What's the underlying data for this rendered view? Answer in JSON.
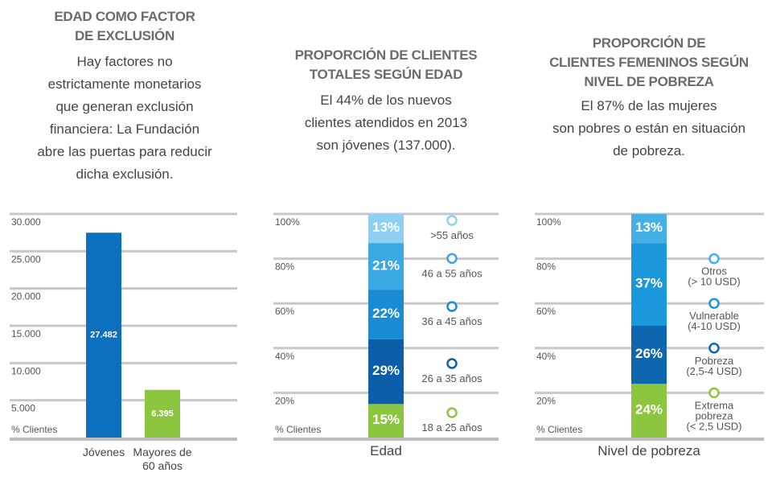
{
  "chart_data": [
    {
      "type": "bar",
      "title": "EDAD COMO FACTOR\nDE EXCLUSIÓN",
      "description": "Hay factores no\nestrictamente monetarios\nque generan exclusión\nfinanciera: La Fundación\nabre las puertas para reducir\ndicha exclusión.",
      "y_label": "% Clientes",
      "categories": [
        "Jóvenes",
        "Mayores de\n60 años"
      ],
      "values": [
        27482,
        6395
      ],
      "value_labels": [
        "27.482",
        "6.395"
      ],
      "colors": [
        "#0d70be",
        "#8cc63f"
      ],
      "ylim": [
        0,
        30000
      ],
      "yticks": [
        {
          "value": 5000,
          "label": "5.000"
        },
        {
          "value": 10000,
          "label": "10.000"
        },
        {
          "value": 15000,
          "label": "15.000"
        },
        {
          "value": 20000,
          "label": "20.000"
        },
        {
          "value": 25000,
          "label": "25.000"
        },
        {
          "value": 30000,
          "label": "30.000"
        }
      ],
      "grid": true
    },
    {
      "type": "stacked_bar",
      "title": "PROPORCIÓN DE CLIENTES\nTOTALES SEGÚN EDAD",
      "description": "El 44% de los nuevos\nclientes atendidos en 2013\nson jóvenes (137.000).",
      "y_label": "% Clientes",
      "categories": [
        "Edad"
      ],
      "series": [
        {
          "name": "18 a 25 años",
          "color": "#8cc63f",
          "values": [
            15
          ],
          "value_labels": [
            "15%"
          ]
        },
        {
          "name": "26 a 35 años",
          "color": "#0d5ea8",
          "values": [
            29
          ],
          "value_labels": [
            "29%"
          ]
        },
        {
          "name": "36 a 45 años",
          "color": "#1a8cd6",
          "values": [
            22
          ],
          "value_labels": [
            "22%"
          ]
        },
        {
          "name": "46 a 55 años",
          "color": "#3aa8e2",
          "values": [
            21
          ],
          "value_labels": [
            "21%"
          ]
        },
        {
          "name": ">55 años",
          "color": "#8fd0f2",
          "values": [
            13
          ],
          "value_labels": [
            "13%"
          ]
        }
      ],
      "ylim": [
        0,
        100
      ],
      "yticks": [
        {
          "value": 20,
          "label": "20%"
        },
        {
          "value": 40,
          "label": "40%"
        },
        {
          "value": 60,
          "label": "60%"
        },
        {
          "value": 80,
          "label": "80%"
        },
        {
          "value": 100,
          "label": "100%"
        }
      ],
      "grid": true
    },
    {
      "type": "stacked_bar",
      "title": "PROPORCIÓN DE\nCLIENTES FEMENINOS SEGÚN\nNIVEL DE POBREZA",
      "description": "El 87% de las mujeres\nson pobres o están en situación\nde pobreza.",
      "y_label": "% Clientes",
      "categories": [
        "Nivel de pobreza"
      ],
      "series": [
        {
          "name": "Extrema\npobreza\n(< 2,5  USD)",
          "color": "#8cc63f",
          "values": [
            24
          ],
          "value_labels": [
            "24%"
          ]
        },
        {
          "name": "Pobreza\n(2,5-4 USD)",
          "color": "#0e66ae",
          "values": [
            26
          ],
          "value_labels": [
            "26%"
          ]
        },
        {
          "name": "Vulnerable\n(4-10 USD)",
          "color": "#1b97dc",
          "values": [
            37
          ],
          "value_labels": [
            "37%"
          ]
        },
        {
          "name": "Otros\n(> 10 USD)",
          "color": "#45b0e6",
          "values": [
            13
          ],
          "value_labels": [
            "13%"
          ]
        }
      ],
      "ylim": [
        0,
        100
      ],
      "yticks": [
        {
          "value": 20,
          "label": "20%"
        },
        {
          "value": 40,
          "label": "40%"
        },
        {
          "value": 60,
          "label": "60%"
        },
        {
          "value": 80,
          "label": "80%"
        },
        {
          "value": 100,
          "label": "100%"
        }
      ],
      "grid": true
    }
  ]
}
